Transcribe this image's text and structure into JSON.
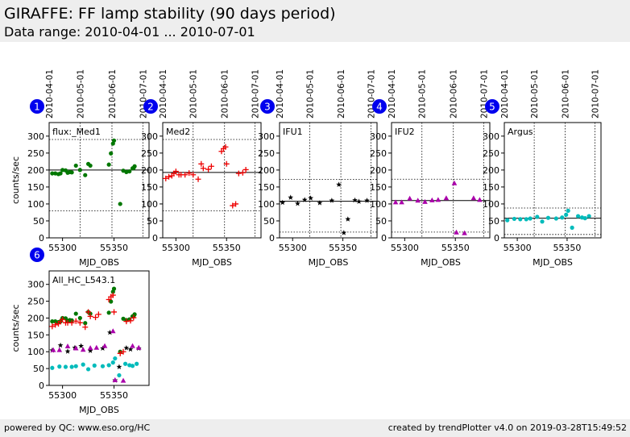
{
  "header": {
    "title": "GIRAFFE: FF lamp stability (90 days period)",
    "subtitle": "Data range: 2010-04-01 ... 2010-07-01"
  },
  "footer": {
    "left": "powered by QC: www.eso.org/HC",
    "right": "created by trendPlotter v4.0 on 2019-03-28T15:49:52"
  },
  "colors": {
    "Med1": "#007700",
    "Med2": "#ee0000",
    "IFU1": "#000000",
    "IFU2": "#aa00aa",
    "Argus": "#00bbbb",
    "badge": "#0000ee",
    "header_bg": "#eeeeee"
  },
  "chart_data": [
    {
      "type": "scatter",
      "number": "1",
      "label": "flux:_Med1",
      "marker": "circle",
      "color": "#007700",
      "xlabel": "MJD_OBS",
      "ylabel": "counts/sec",
      "xlim": [
        55287,
        55384
      ],
      "ylim": [
        0,
        340
      ],
      "x_ticks": [
        55300,
        55350
      ],
      "y_ticks": [
        0,
        50,
        100,
        150,
        200,
        250,
        300
      ],
      "top_date_ticks": [
        {
          "label": "2010-04-01",
          "x": 55287
        },
        {
          "label": "2010-05-01",
          "x": 55317
        },
        {
          "label": "2010-06-01",
          "x": 55348
        },
        {
          "label": "2010-07-01",
          "x": 55378
        }
      ],
      "ref_lines": {
        "mean": 200,
        "upper": 290,
        "lower": 80
      },
      "x": [
        55290,
        55293,
        55296,
        55298,
        55300,
        55303,
        55305,
        55307,
        55309,
        55313,
        55317,
        55322,
        55325,
        55327,
        55345,
        55347,
        55349,
        55350,
        55356,
        55359,
        55362,
        55365,
        55368,
        55369,
        55370
      ],
      "y": [
        190,
        190,
        188,
        190,
        200,
        199,
        192,
        194,
        193,
        213,
        200,
        185,
        218,
        213,
        216,
        249,
        278,
        287,
        100,
        198,
        194,
        196,
        205,
        206,
        211
      ]
    },
    {
      "type": "scatter",
      "number": "2",
      "label": "Med2",
      "marker": "plus",
      "color": "#ee0000",
      "xlabel": "MJD_OBS",
      "ylabel": "",
      "xlim": [
        55287,
        55384
      ],
      "ylim": [
        0,
        340
      ],
      "x_ticks": [
        55300,
        55350
      ],
      "y_ticks": [
        0,
        50,
        100,
        150,
        200,
        250,
        300
      ],
      "top_date_ticks": [
        {
          "label": "2010-04-01",
          "x": 55287
        },
        {
          "label": "2010-05-01",
          "x": 55317
        },
        {
          "label": "2010-06-01",
          "x": 55348
        },
        {
          "label": "2010-07-01",
          "x": 55378
        }
      ],
      "ref_lines": {
        "mean": 193,
        "upper": 290,
        "lower": 80
      },
      "x": [
        55290,
        55293,
        55296,
        55298,
        55300,
        55303,
        55305,
        55309,
        55313,
        55317,
        55322,
        55325,
        55327,
        55332,
        55335,
        55345,
        55347,
        55349,
        55350,
        55356,
        55359,
        55362,
        55366,
        55369
      ],
      "y": [
        175,
        180,
        183,
        190,
        196,
        186,
        186,
        186,
        191,
        186,
        173,
        218,
        205,
        202,
        211,
        255,
        263,
        268,
        218,
        95,
        100,
        190,
        192,
        201
      ]
    },
    {
      "type": "scatter",
      "number": "3",
      "label": "IFU1",
      "marker": "star",
      "color": "#000000",
      "xlabel": "MJD_OBS",
      "ylabel": "",
      "xlim": [
        55287,
        55384
      ],
      "ylim": [
        0,
        340
      ],
      "x_ticks": [
        55300,
        55350
      ],
      "y_ticks": [
        0,
        50,
        100,
        150,
        200,
        250,
        300
      ],
      "top_date_ticks": [
        {
          "label": "2010-04-01",
          "x": 55287
        },
        {
          "label": "2010-05-01",
          "x": 55317
        },
        {
          "label": "2010-06-01",
          "x": 55348
        },
        {
          "label": "2010-07-01",
          "x": 55378
        }
      ],
      "ref_lines": {
        "mean": 108,
        "upper": 172,
        "lower": 17
      },
      "x": [
        55290,
        55298,
        55305,
        55312,
        55318,
        55327,
        55339,
        55346,
        55351,
        55355,
        55362,
        55366,
        55374
      ],
      "y": [
        104,
        119,
        101,
        112,
        117,
        103,
        110,
        157,
        15,
        55,
        111,
        107,
        110
      ]
    },
    {
      "type": "scatter",
      "number": "4",
      "label": "IFU2",
      "marker": "triangle",
      "color": "#aa00aa",
      "xlabel": "MJD_OBS",
      "ylabel": "",
      "xlim": [
        55287,
        55384
      ],
      "ylim": [
        0,
        340
      ],
      "x_ticks": [
        55300,
        55350
      ],
      "y_ticks": [
        0,
        50,
        100,
        150,
        200,
        250,
        300
      ],
      "top_date_ticks": [
        {
          "label": "2010-04-01",
          "x": 55287
        },
        {
          "label": "2010-05-01",
          "x": 55317
        },
        {
          "label": "2010-06-01",
          "x": 55348
        },
        {
          "label": "2010-07-01",
          "x": 55378
        }
      ],
      "ref_lines": {
        "mean": 110,
        "upper": 173,
        "lower": 17
      },
      "x": [
        55291,
        55297,
        55305,
        55313,
        55320,
        55327,
        55333,
        55341,
        55349,
        55351,
        55359,
        55368,
        55374
      ],
      "y": [
        105,
        105,
        116,
        110,
        106,
        111,
        112,
        117,
        161,
        16,
        14,
        117,
        112
      ]
    },
    {
      "type": "scatter",
      "number": "5",
      "label": "Argus",
      "marker": "circle",
      "color": "#00bbbb",
      "xlabel": "MJD_OBS",
      "ylabel": "",
      "xlim": [
        55287,
        55384
      ],
      "ylim": [
        0,
        340
      ],
      "x_ticks": [
        55300,
        55350
      ],
      "y_ticks": [
        0,
        50,
        100,
        150,
        200,
        250,
        300
      ],
      "top_date_ticks": [
        {
          "label": "2010-04-01",
          "x": 55287
        },
        {
          "label": "2010-05-01",
          "x": 55317
        },
        {
          "label": "2010-06-01",
          "x": 55348
        },
        {
          "label": "2010-07-01",
          "x": 55378
        }
      ],
      "ref_lines": {
        "mean": 58,
        "upper": 88,
        "lower": 10
      },
      "x": [
        55290,
        55297,
        55303,
        55309,
        55313,
        55320,
        55325,
        55331,
        55339,
        55345,
        55349,
        55351,
        55355,
        55361,
        55365,
        55368,
        55372
      ],
      "y": [
        52,
        56,
        55,
        55,
        57,
        62,
        48,
        59,
        57,
        60,
        68,
        80,
        30,
        64,
        60,
        58,
        64
      ]
    },
    {
      "type": "scatter",
      "number": "6",
      "label": "All_HC_L543.1",
      "marker": "mixed",
      "xlabel": "MJD_OBS",
      "ylabel": "counts/sec",
      "xlim": [
        55287,
        55384
      ],
      "ylim": [
        0,
        340
      ],
      "x_ticks": [
        55300,
        55350
      ],
      "y_ticks": [
        0,
        50,
        100,
        150,
        200,
        250,
        300
      ],
      "series": [
        {
          "ref": "Med1",
          "marker": "circle",
          "color": "#007700"
        },
        {
          "ref": "Med2",
          "marker": "plus",
          "color": "#ee0000"
        },
        {
          "ref": "IFU1",
          "marker": "star",
          "color": "#000000"
        },
        {
          "ref": "IFU2",
          "marker": "triangle",
          "color": "#aa00aa"
        },
        {
          "ref": "Argus",
          "marker": "circle",
          "color": "#00bbbb"
        }
      ]
    }
  ]
}
